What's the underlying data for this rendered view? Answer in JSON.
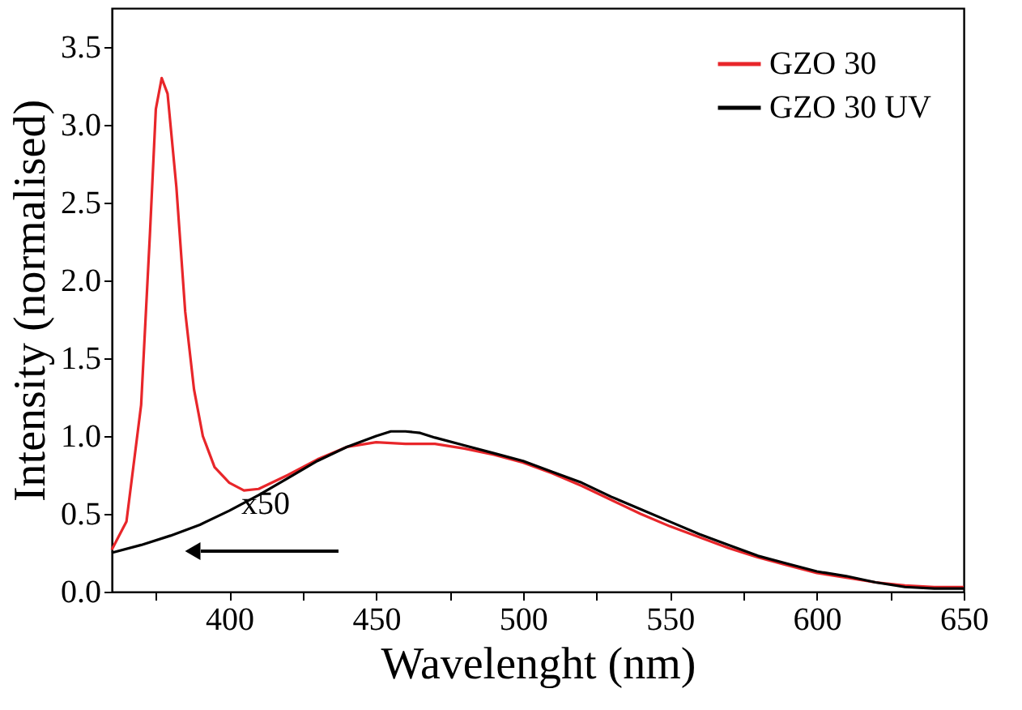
{
  "chart_data": {
    "type": "line",
    "xlabel": "Wavelenght (nm)",
    "ylabel": "Intensity (normalised)",
    "xlim": [
      360,
      650
    ],
    "ylim": [
      0,
      3.75
    ],
    "xticks": [
      {
        "value": 375,
        "label": null
      },
      400,
      {
        "value": 425,
        "label": null
      },
      450,
      {
        "value": 475,
        "label": null
      },
      500,
      {
        "value": 525,
        "label": null
      },
      550,
      {
        "value": 575,
        "label": null
      },
      600,
      {
        "value": 625,
        "label": null
      },
      650
    ],
    "yticks": [
      {
        "value": 0,
        "label": "0.0"
      },
      0.5,
      {
        "value": 1,
        "label": "1.0"
      },
      1.5,
      {
        "value": 2,
        "label": "2.0"
      },
      2.5,
      {
        "value": 3,
        "label": "3.0"
      },
      3.5
    ],
    "grid": false,
    "legend": "top right",
    "marker": "none",
    "line_style": "solid",
    "annotations": [
      "x50"
    ],
    "series": [
      {
        "name": "GZO 30",
        "color": "#e8262a",
        "x": [
          360,
          365,
          370,
          373,
          375,
          377,
          379,
          382,
          385,
          388,
          391,
          395,
          400,
          405,
          410,
          420,
          430,
          440,
          450,
          460,
          470,
          480,
          490,
          500,
          510,
          520,
          530,
          540,
          550,
          560,
          570,
          580,
          590,
          600,
          610,
          620,
          630,
          640,
          650
        ],
        "values": [
          0.27,
          0.45,
          1.2,
          2.3,
          3.1,
          3.3,
          3.2,
          2.6,
          1.8,
          1.3,
          1.0,
          0.8,
          0.7,
          0.65,
          0.66,
          0.75,
          0.85,
          0.93,
          0.96,
          0.95,
          0.95,
          0.92,
          0.88,
          0.83,
          0.76,
          0.68,
          0.59,
          0.5,
          0.42,
          0.35,
          0.28,
          0.22,
          0.17,
          0.12,
          0.09,
          0.06,
          0.04,
          0.03,
          0.03
        ]
      },
      {
        "name": "GZO 30 UV",
        "color": "#000000",
        "x": [
          360,
          370,
          380,
          390,
          400,
          410,
          420,
          430,
          440,
          450,
          455,
          460,
          465,
          470,
          480,
          490,
          500,
          510,
          520,
          530,
          540,
          550,
          560,
          570,
          580,
          590,
          600,
          610,
          620,
          630,
          640,
          650
        ],
        "values": [
          0.25,
          0.3,
          0.36,
          0.43,
          0.52,
          0.62,
          0.73,
          0.84,
          0.93,
          1.0,
          1.03,
          1.03,
          1.02,
          0.99,
          0.94,
          0.89,
          0.84,
          0.77,
          0.7,
          0.61,
          0.53,
          0.45,
          0.37,
          0.3,
          0.23,
          0.18,
          0.13,
          0.1,
          0.06,
          0.03,
          0.02,
          0.02
        ]
      }
    ]
  }
}
